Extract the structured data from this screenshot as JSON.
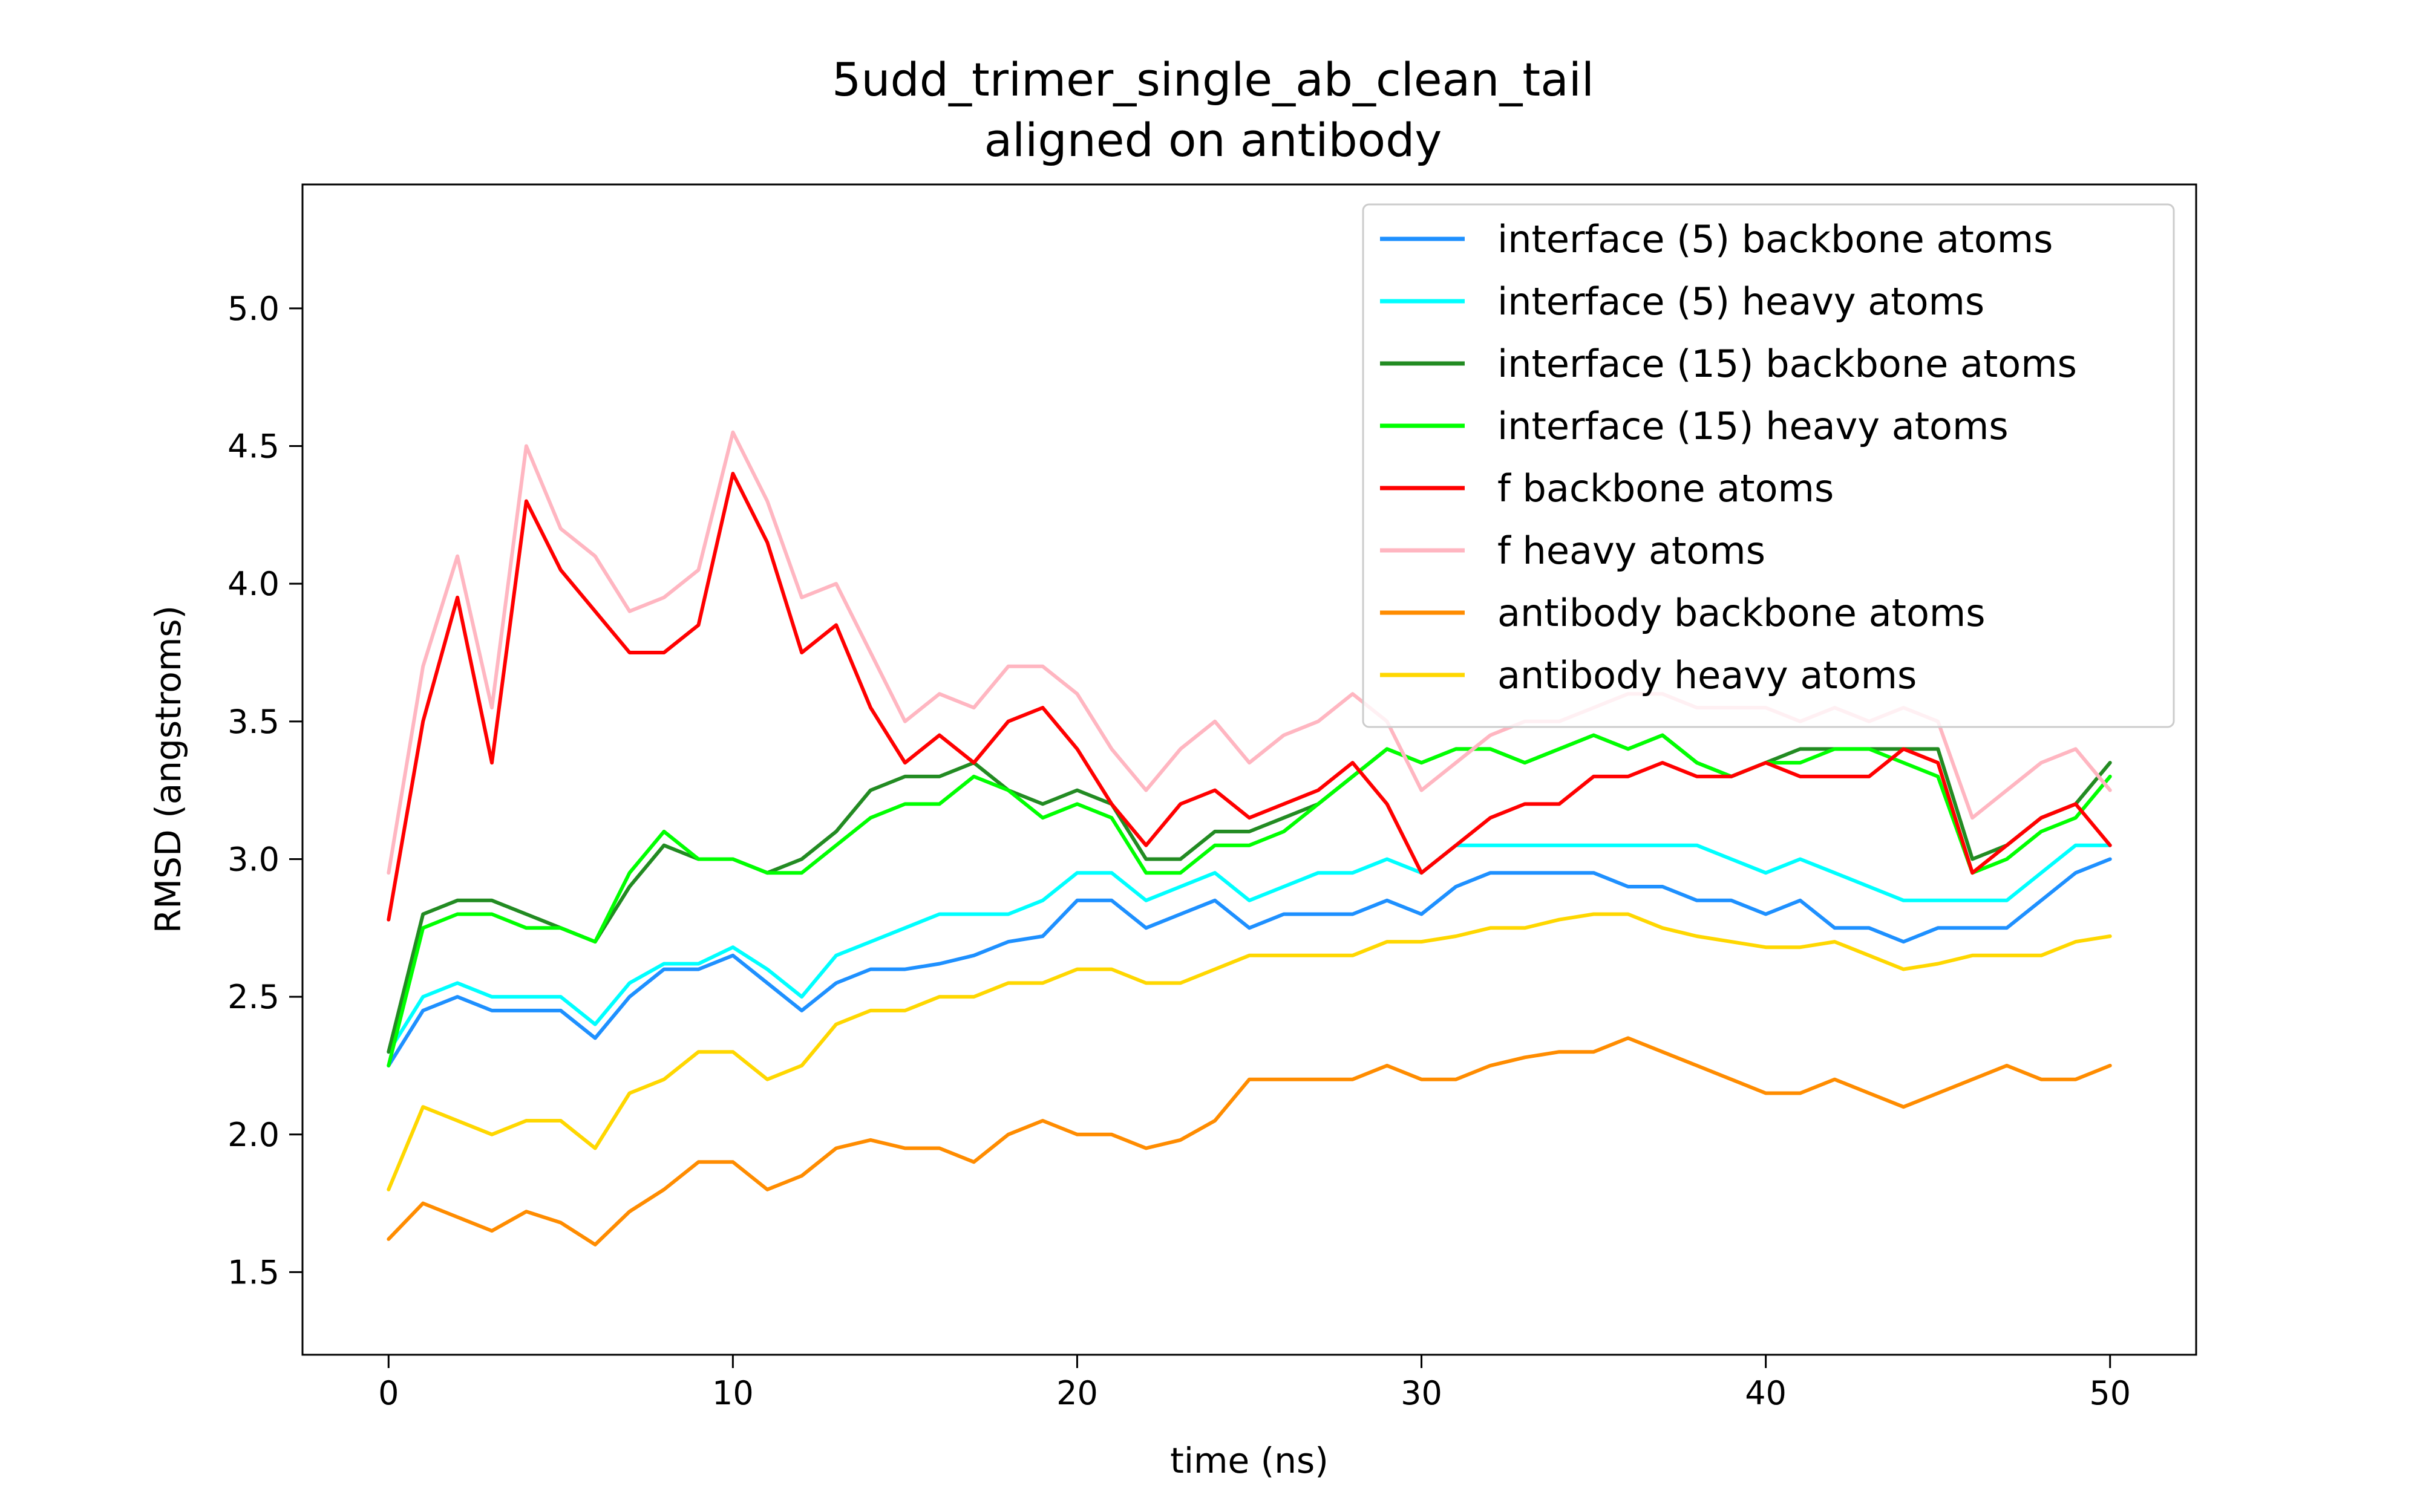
{
  "chart_data": {
    "type": "line",
    "title": "5udd_trimer_single_ab_clean_tail",
    "subtitle": "aligned on antibody",
    "xlabel": "time (ns)",
    "ylabel": "RMSD (angstroms)",
    "xlim": [
      -2.5,
      52.5
    ],
    "ylim": [
      1.2,
      5.45
    ],
    "xticks": [
      0,
      10,
      20,
      30,
      40,
      50
    ],
    "yticks": [
      1.5,
      2.0,
      2.5,
      3.0,
      3.5,
      4.0,
      4.5,
      5.0
    ],
    "grid": false,
    "legend_position": "top-right",
    "x": [
      0,
      1,
      2,
      3,
      4,
      5,
      6,
      7,
      8,
      9,
      10,
      11,
      12,
      13,
      14,
      15,
      16,
      17,
      18,
      19,
      20,
      21,
      22,
      23,
      24,
      25,
      26,
      27,
      28,
      29,
      30,
      31,
      32,
      33,
      34,
      35,
      36,
      37,
      38,
      39,
      40,
      41,
      42,
      43,
      44,
      45,
      46,
      47,
      48,
      49,
      50
    ],
    "series": [
      {
        "name": "interface (5) backbone atoms",
        "color": "#1e90ff",
        "values": [
          2.25,
          2.45,
          2.5,
          2.45,
          2.45,
          2.45,
          2.35,
          2.5,
          2.6,
          2.6,
          2.65,
          2.55,
          2.45,
          2.55,
          2.6,
          2.6,
          2.62,
          2.65,
          2.7,
          2.72,
          2.85,
          2.85,
          2.75,
          2.8,
          2.85,
          2.75,
          2.8,
          2.8,
          2.8,
          2.85,
          2.8,
          2.9,
          2.95,
          2.95,
          2.95,
          2.95,
          2.9,
          2.9,
          2.85,
          2.85,
          2.8,
          2.85,
          2.75,
          2.75,
          2.7,
          2.75,
          2.75,
          2.75,
          2.85,
          2.95,
          3.0
        ]
      },
      {
        "name": "interface (5) heavy atoms",
        "color": "#00ffff",
        "values": [
          2.3,
          2.5,
          2.55,
          2.5,
          2.5,
          2.5,
          2.4,
          2.55,
          2.62,
          2.62,
          2.68,
          2.6,
          2.5,
          2.65,
          2.7,
          2.75,
          2.8,
          2.8,
          2.8,
          2.85,
          2.95,
          2.95,
          2.85,
          2.9,
          2.95,
          2.85,
          2.9,
          2.95,
          2.95,
          3.0,
          2.95,
          3.05,
          3.05,
          3.05,
          3.05,
          3.05,
          3.05,
          3.05,
          3.05,
          3.0,
          2.95,
          3.0,
          2.95,
          2.9,
          2.85,
          2.85,
          2.85,
          2.85,
          2.95,
          3.05,
          3.05
        ]
      },
      {
        "name": "interface (15) backbone atoms",
        "color": "#228b22",
        "values": [
          2.3,
          2.8,
          2.85,
          2.85,
          2.8,
          2.75,
          2.7,
          2.9,
          3.05,
          3.0,
          3.0,
          2.95,
          3.0,
          3.1,
          3.25,
          3.3,
          3.3,
          3.35,
          3.25,
          3.2,
          3.25,
          3.2,
          3.0,
          3.0,
          3.1,
          3.1,
          3.15,
          3.2,
          3.3,
          3.4,
          3.35,
          3.4,
          3.4,
          3.35,
          3.4,
          3.45,
          3.4,
          3.45,
          3.35,
          3.3,
          3.35,
          3.4,
          3.4,
          3.4,
          3.4,
          3.4,
          3.0,
          3.05,
          3.15,
          3.2,
          3.35
        ]
      },
      {
        "name": "interface (15) heavy atoms",
        "color": "#00ff00",
        "values": [
          2.25,
          2.75,
          2.8,
          2.8,
          2.75,
          2.75,
          2.7,
          2.95,
          3.1,
          3.0,
          3.0,
          2.95,
          2.95,
          3.05,
          3.15,
          3.2,
          3.2,
          3.3,
          3.25,
          3.15,
          3.2,
          3.15,
          2.95,
          2.95,
          3.05,
          3.05,
          3.1,
          3.2,
          3.3,
          3.4,
          3.35,
          3.4,
          3.4,
          3.35,
          3.4,
          3.45,
          3.4,
          3.45,
          3.35,
          3.3,
          3.35,
          3.35,
          3.4,
          3.4,
          3.35,
          3.3,
          2.95,
          3.0,
          3.1,
          3.15,
          3.3
        ]
      },
      {
        "name": "f backbone atoms",
        "color": "#ff0000",
        "values": [
          2.78,
          3.5,
          3.95,
          3.35,
          4.3,
          4.05,
          3.9,
          3.75,
          3.75,
          3.85,
          4.4,
          4.15,
          3.75,
          3.85,
          3.55,
          3.35,
          3.45,
          3.35,
          3.5,
          3.55,
          3.4,
          3.2,
          3.05,
          3.2,
          3.25,
          3.15,
          3.2,
          3.25,
          3.35,
          3.2,
          2.95,
          3.05,
          3.15,
          3.2,
          3.2,
          3.3,
          3.3,
          3.35,
          3.3,
          3.3,
          3.35,
          3.3,
          3.3,
          3.3,
          3.4,
          3.35,
          2.95,
          3.05,
          3.15,
          3.2,
          3.05
        ]
      },
      {
        "name": "f heavy atoms",
        "color": "#ffb6c1",
        "values": [
          2.95,
          3.7,
          4.1,
          3.55,
          4.5,
          4.2,
          4.1,
          3.9,
          3.95,
          4.05,
          4.55,
          4.3,
          3.95,
          4.0,
          3.75,
          3.5,
          3.6,
          3.55,
          3.7,
          3.7,
          3.6,
          3.4,
          3.25,
          3.4,
          3.5,
          3.35,
          3.45,
          3.5,
          3.6,
          3.5,
          3.25,
          3.35,
          3.45,
          3.5,
          3.5,
          3.55,
          3.6,
          3.6,
          3.55,
          3.55,
          3.55,
          3.5,
          3.55,
          3.5,
          3.55,
          3.5,
          3.15,
          3.25,
          3.35,
          3.4,
          3.25
        ]
      },
      {
        "name": "antibody backbone atoms",
        "color": "#ff8c00",
        "values": [
          1.62,
          1.75,
          1.7,
          1.65,
          1.72,
          1.68,
          1.6,
          1.72,
          1.8,
          1.9,
          1.9,
          1.8,
          1.85,
          1.95,
          1.98,
          1.95,
          1.95,
          1.9,
          2.0,
          2.05,
          2.0,
          2.0,
          1.95,
          1.98,
          2.05,
          2.2,
          2.2,
          2.2,
          2.2,
          2.25,
          2.2,
          2.2,
          2.25,
          2.28,
          2.3,
          2.3,
          2.35,
          2.3,
          2.25,
          2.2,
          2.15,
          2.15,
          2.2,
          2.15,
          2.1,
          2.15,
          2.2,
          2.25,
          2.2,
          2.2,
          2.25
        ]
      },
      {
        "name": "antibody heavy atoms",
        "color": "#ffd700",
        "values": [
          1.8,
          2.1,
          2.05,
          2.0,
          2.05,
          2.05,
          1.95,
          2.15,
          2.2,
          2.3,
          2.3,
          2.2,
          2.25,
          2.4,
          2.45,
          2.45,
          2.5,
          2.5,
          2.55,
          2.55,
          2.6,
          2.6,
          2.55,
          2.55,
          2.6,
          2.65,
          2.65,
          2.65,
          2.65,
          2.7,
          2.7,
          2.72,
          2.75,
          2.75,
          2.78,
          2.8,
          2.8,
          2.75,
          2.72,
          2.7,
          2.68,
          2.68,
          2.7,
          2.65,
          2.6,
          2.62,
          2.65,
          2.65,
          2.65,
          2.7,
          2.72
        ]
      }
    ]
  }
}
